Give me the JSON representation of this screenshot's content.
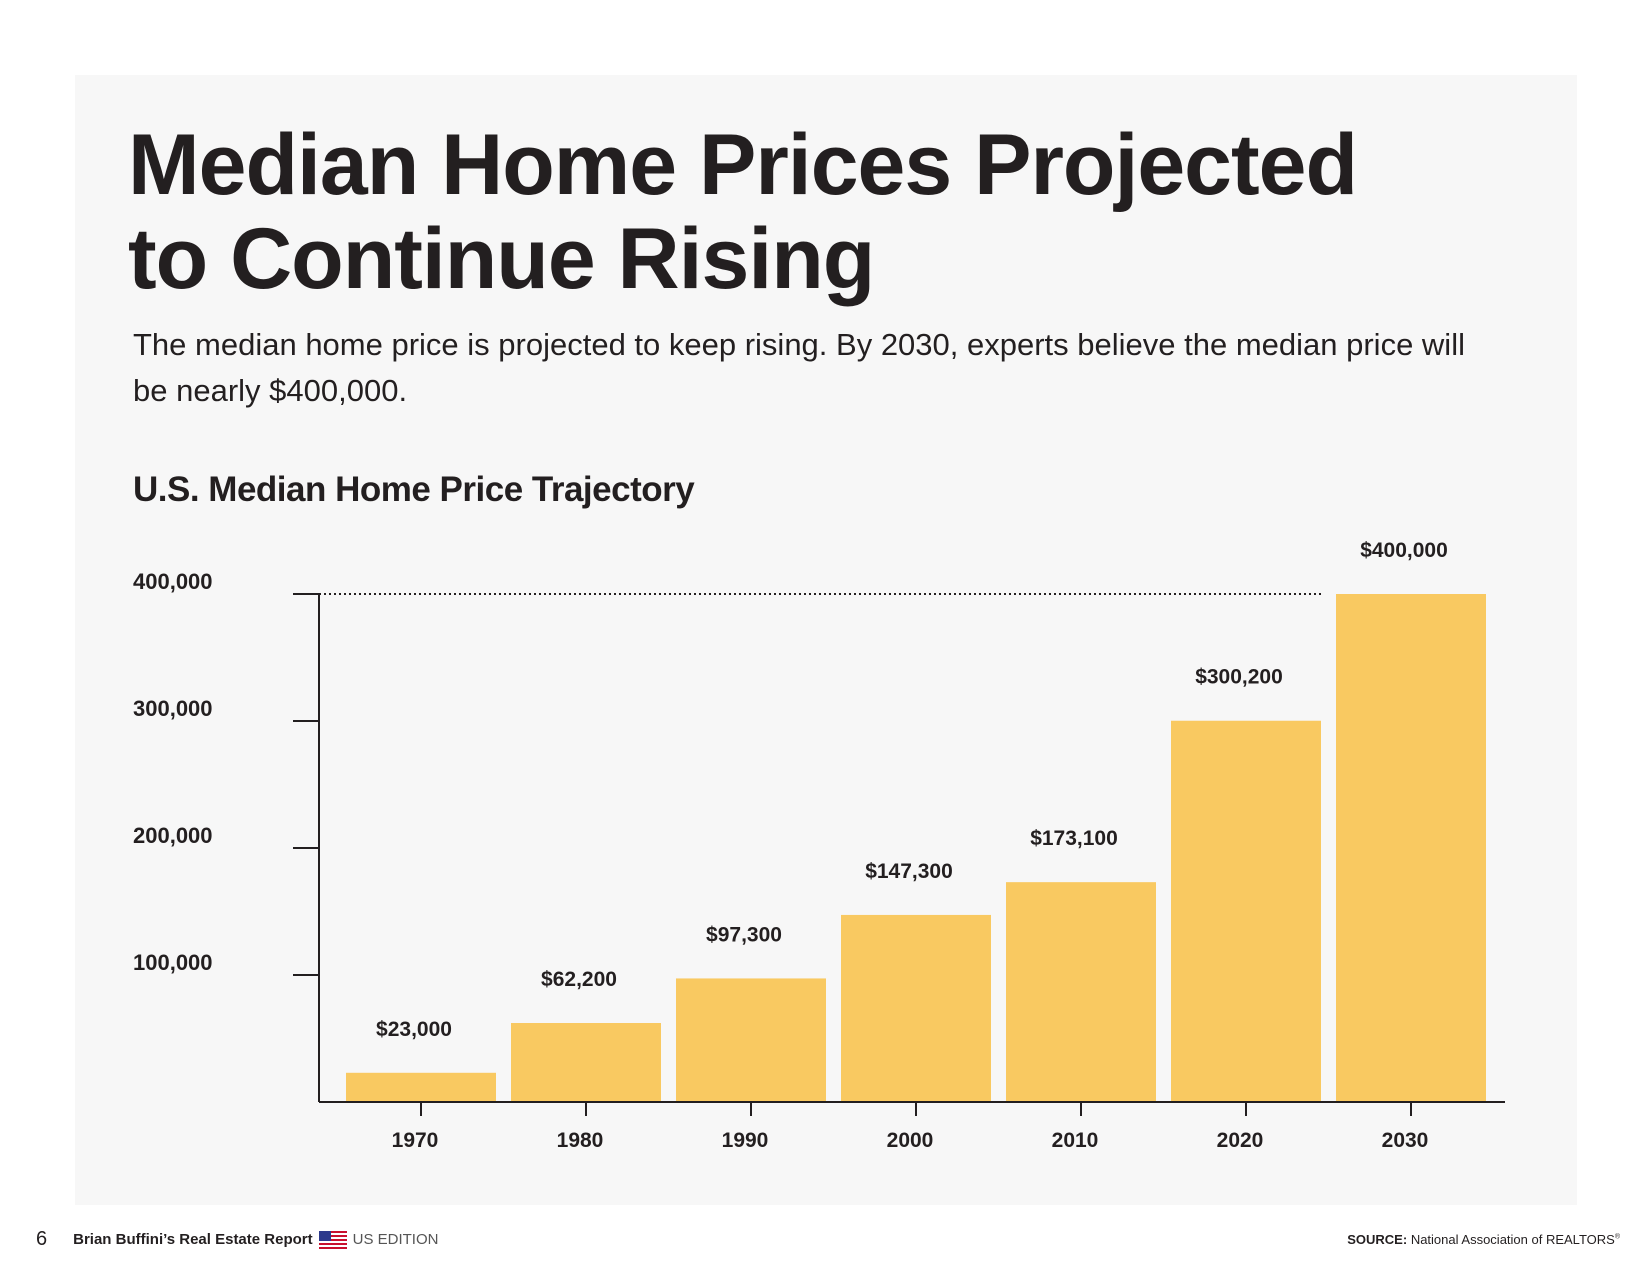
{
  "header": {
    "title_line1": "Median Home Prices Projected",
    "title_line2": "to Continue Rising",
    "subtitle": "The median home price is projected to keep rising. By 2030, experts believe the median price will be nearly $400,000."
  },
  "chart_data": {
    "type": "bar",
    "title": "U.S. Median Home Price Trajectory",
    "categories": [
      "1970",
      "1980",
      "1990",
      "2000",
      "2010",
      "2020",
      "2030"
    ],
    "values": [
      23000,
      62200,
      97300,
      147300,
      173100,
      300200,
      400000
    ],
    "value_labels": [
      "$23,000",
      "$62,200",
      "$97,300",
      "$147,300",
      "$173,100",
      "$300,200",
      "$400,000"
    ],
    "y_ticks": [
      100000,
      200000,
      300000,
      400000
    ],
    "y_tick_labels": [
      "100,000",
      "200,000",
      "300,000",
      "400,000"
    ],
    "ylim": [
      0,
      400000
    ],
    "reference_line": 400000,
    "bar_color": "#f9c961",
    "grid": false,
    "legend": "none"
  },
  "footer": {
    "page_number": "6",
    "report_name": "Brian Buffini’s Real Estate Report",
    "edition": "US EDITION",
    "source_label": "SOURCE:",
    "source_text": "National Association of REALTORS",
    "source_mark": "®"
  }
}
